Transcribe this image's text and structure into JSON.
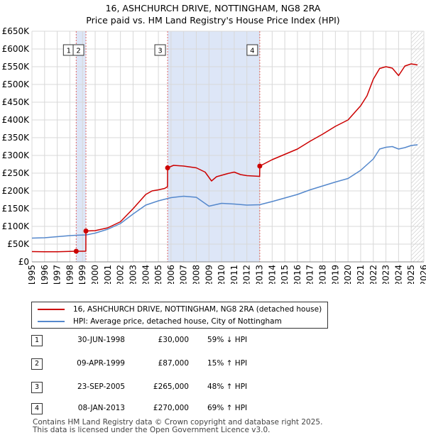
{
  "header": {
    "title_line1": "16, ASHCHURCH DRIVE, NOTTINGHAM, NG8 2RA",
    "title_line2": "Price paid vs. HM Land Registry's House Price Index (HPI)"
  },
  "chart_data": {
    "type": "line",
    "title": "16, ASHCHURCH DRIVE, NOTTINGHAM, NG8 2RA",
    "subtitle": "Price paid vs. HM Land Registry's House Price Index (HPI)",
    "xlabel": "",
    "ylabel": "",
    "xlim": [
      1995,
      2026
    ],
    "ylim": [
      0,
      650000
    ],
    "x_ticks": [
      "1995",
      "1996",
      "1997",
      "1998",
      "1999",
      "2000",
      "2001",
      "2002",
      "2003",
      "2004",
      "2005",
      "2006",
      "2007",
      "2008",
      "2009",
      "2010",
      "2011",
      "2012",
      "2013",
      "2014",
      "2015",
      "2016",
      "2017",
      "2018",
      "2019",
      "2020",
      "2021",
      "2022",
      "2023",
      "2024",
      "2025",
      "2026"
    ],
    "y_ticks": [
      {
        "value": 0,
        "label": "£0"
      },
      {
        "value": 50000,
        "label": "£50K"
      },
      {
        "value": 100000,
        "label": "£100K"
      },
      {
        "value": 150000,
        "label": "£150K"
      },
      {
        "value": 200000,
        "label": "£200K"
      },
      {
        "value": 250000,
        "label": "£250K"
      },
      {
        "value": 300000,
        "label": "£300K"
      },
      {
        "value": 350000,
        "label": "£350K"
      },
      {
        "value": 400000,
        "label": "£400K"
      },
      {
        "value": 450000,
        "label": "£450K"
      },
      {
        "value": 500000,
        "label": "£500K"
      },
      {
        "value": 550000,
        "label": "£550K"
      },
      {
        "value": 600000,
        "label": "£600K"
      },
      {
        "value": 650000,
        "label": "£650K"
      }
    ],
    "grid": true,
    "shaded_ranges": [
      [
        1998.5,
        1999.27
      ],
      [
        2005.73,
        2013.02
      ]
    ],
    "hatched_from": 2025.0,
    "series": [
      {
        "name": "16, ASHCHURCH DRIVE, NOTTINGHAM, NG8 2RA (detached house)",
        "color": "#cc0000",
        "points": [
          [
            1995.0,
            29000
          ],
          [
            1996.0,
            28500
          ],
          [
            1997.0,
            28500
          ],
          [
            1998.0,
            29500
          ],
          [
            1998.5,
            30000
          ],
          [
            1999.26,
            30000
          ],
          [
            1999.27,
            87000
          ],
          [
            2000.0,
            88000
          ],
          [
            2001.0,
            96000
          ],
          [
            2002.0,
            113000
          ],
          [
            2003.0,
            150000
          ],
          [
            2004.0,
            190000
          ],
          [
            2004.5,
            200000
          ],
          [
            2005.0,
            203000
          ],
          [
            2005.5,
            207000
          ],
          [
            2005.72,
            212000
          ],
          [
            2005.73,
            265000
          ],
          [
            2006.2,
            272000
          ],
          [
            2007.0,
            270000
          ],
          [
            2008.0,
            265000
          ],
          [
            2008.7,
            253000
          ],
          [
            2009.2,
            228000
          ],
          [
            2009.6,
            240000
          ],
          [
            2010.5,
            249000
          ],
          [
            2011.0,
            253000
          ],
          [
            2011.5,
            246000
          ],
          [
            2012.0,
            243000
          ],
          [
            2012.5,
            242000
          ],
          [
            2013.01,
            241000
          ],
          [
            2013.02,
            270000
          ],
          [
            2014.0,
            288000
          ],
          [
            2015.0,
            303000
          ],
          [
            2016.0,
            318000
          ],
          [
            2017.0,
            340000
          ],
          [
            2018.0,
            360000
          ],
          [
            2019.0,
            382000
          ],
          [
            2020.0,
            400000
          ],
          [
            2021.0,
            440000
          ],
          [
            2021.5,
            468000
          ],
          [
            2022.0,
            515000
          ],
          [
            2022.5,
            545000
          ],
          [
            2023.0,
            550000
          ],
          [
            2023.5,
            546000
          ],
          [
            2024.0,
            525000
          ],
          [
            2024.5,
            552000
          ],
          [
            2025.0,
            558000
          ],
          [
            2025.5,
            555000
          ]
        ]
      },
      {
        "name": "HPI: Average price, detached house, City of Nottingham",
        "color": "#5588cc",
        "points": [
          [
            1995.0,
            67000
          ],
          [
            1996.0,
            68000
          ],
          [
            1997.0,
            71000
          ],
          [
            1998.0,
            74000
          ],
          [
            1998.5,
            75000
          ],
          [
            1999.3,
            76000
          ],
          [
            2000.0,
            81000
          ],
          [
            2001.0,
            92000
          ],
          [
            2002.0,
            108000
          ],
          [
            2003.0,
            135000
          ],
          [
            2004.0,
            160000
          ],
          [
            2005.0,
            172000
          ],
          [
            2006.0,
            181000
          ],
          [
            2007.0,
            185000
          ],
          [
            2008.0,
            182000
          ],
          [
            2009.0,
            157000
          ],
          [
            2010.0,
            165000
          ],
          [
            2011.0,
            163000
          ],
          [
            2012.0,
            160000
          ],
          [
            2013.0,
            161000
          ],
          [
            2014.0,
            170000
          ],
          [
            2015.0,
            180000
          ],
          [
            2016.0,
            190000
          ],
          [
            2017.0,
            203000
          ],
          [
            2018.0,
            214000
          ],
          [
            2019.0,
            225000
          ],
          [
            2020.0,
            235000
          ],
          [
            2021.0,
            258000
          ],
          [
            2022.0,
            290000
          ],
          [
            2022.5,
            318000
          ],
          [
            2023.0,
            323000
          ],
          [
            2023.5,
            325000
          ],
          [
            2024.0,
            318000
          ],
          [
            2024.5,
            322000
          ],
          [
            2025.0,
            328000
          ],
          [
            2025.5,
            330000
          ]
        ]
      }
    ],
    "sale_markers": [
      {
        "num": "1",
        "x": 1998.5,
        "y": 30000
      },
      {
        "num": "2",
        "x": 1999.27,
        "y": 87000
      },
      {
        "num": "3",
        "x": 2005.73,
        "y": 265000
      },
      {
        "num": "4",
        "x": 2013.02,
        "y": 270000
      }
    ],
    "vlines": [
      1998.5,
      1999.27,
      2005.73,
      2013.02
    ]
  },
  "legend": {
    "property_label": "16, ASHCHURCH DRIVE, NOTTINGHAM, NG8 2RA (detached house)",
    "hpi_label": "HPI: Average price, detached house, City of Nottingham",
    "property_color": "#cc0000",
    "hpi_color": "#5588cc"
  },
  "sales": [
    {
      "num": "1",
      "date": "30-JUN-1998",
      "price": "£30,000",
      "hpi": "59% ↓ HPI"
    },
    {
      "num": "2",
      "date": "09-APR-1999",
      "price": "£87,000",
      "hpi": "15% ↑ HPI"
    },
    {
      "num": "3",
      "date": "23-SEP-2005",
      "price": "£265,000",
      "hpi": "48% ↑ HPI"
    },
    {
      "num": "4",
      "date": "08-JAN-2013",
      "price": "£270,000",
      "hpi": "69% ↑ HPI"
    }
  ],
  "footer": {
    "line1": "Contains HM Land Registry data © Crown copyright and database right 2025.",
    "line2": "This data is licensed under the Open Government Licence v3.0."
  }
}
